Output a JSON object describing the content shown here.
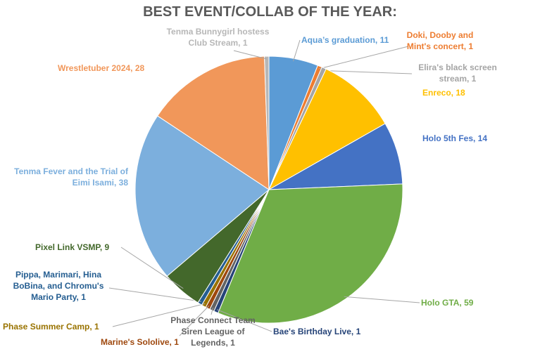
{
  "chart_data": {
    "type": "pie",
    "title": "BEST EVENT/COLLAB OF THE YEAR:",
    "values": [
      11,
      1,
      1,
      18,
      14,
      59,
      1,
      1,
      1,
      1,
      1,
      9,
      38,
      28,
      1
    ],
    "value_labels": [
      "Aqua’s graduation, 11",
      "Doki, Dooby and Mint's concert, 1",
      "Elira's black screen stream, 1",
      "Enreco, 18",
      "Holo 5th Fes, 14",
      "Holo GTA, 59",
      "Bae's Birthday Live, 1",
      "Phase Connect Team Siren League of Legends, 1",
      "Marine's Sololive, 1",
      "Phase Summer Camp, 1",
      "Pippa, Marimari, Hina BoBina, and Chromu's Mario Party, 1",
      "Pixel Link VSMP, 9",
      "Tenma Fever and the Trial of Eimi Isami, 38",
      "Wrestletuber 2024, 28",
      "Tenma Bunnygirl hostess Club Stream, 1"
    ],
    "colors": [
      "#5b9bd5",
      "#ed7d31",
      "#a5a5a5",
      "#ffc000",
      "#4472c4",
      "#70ad47",
      "#264478",
      "#636363",
      "#9e480e",
      "#997300",
      "#255e91",
      "#43682b",
      "#7cafdd",
      "#f1975a",
      "#b7b7b7"
    ]
  }
}
